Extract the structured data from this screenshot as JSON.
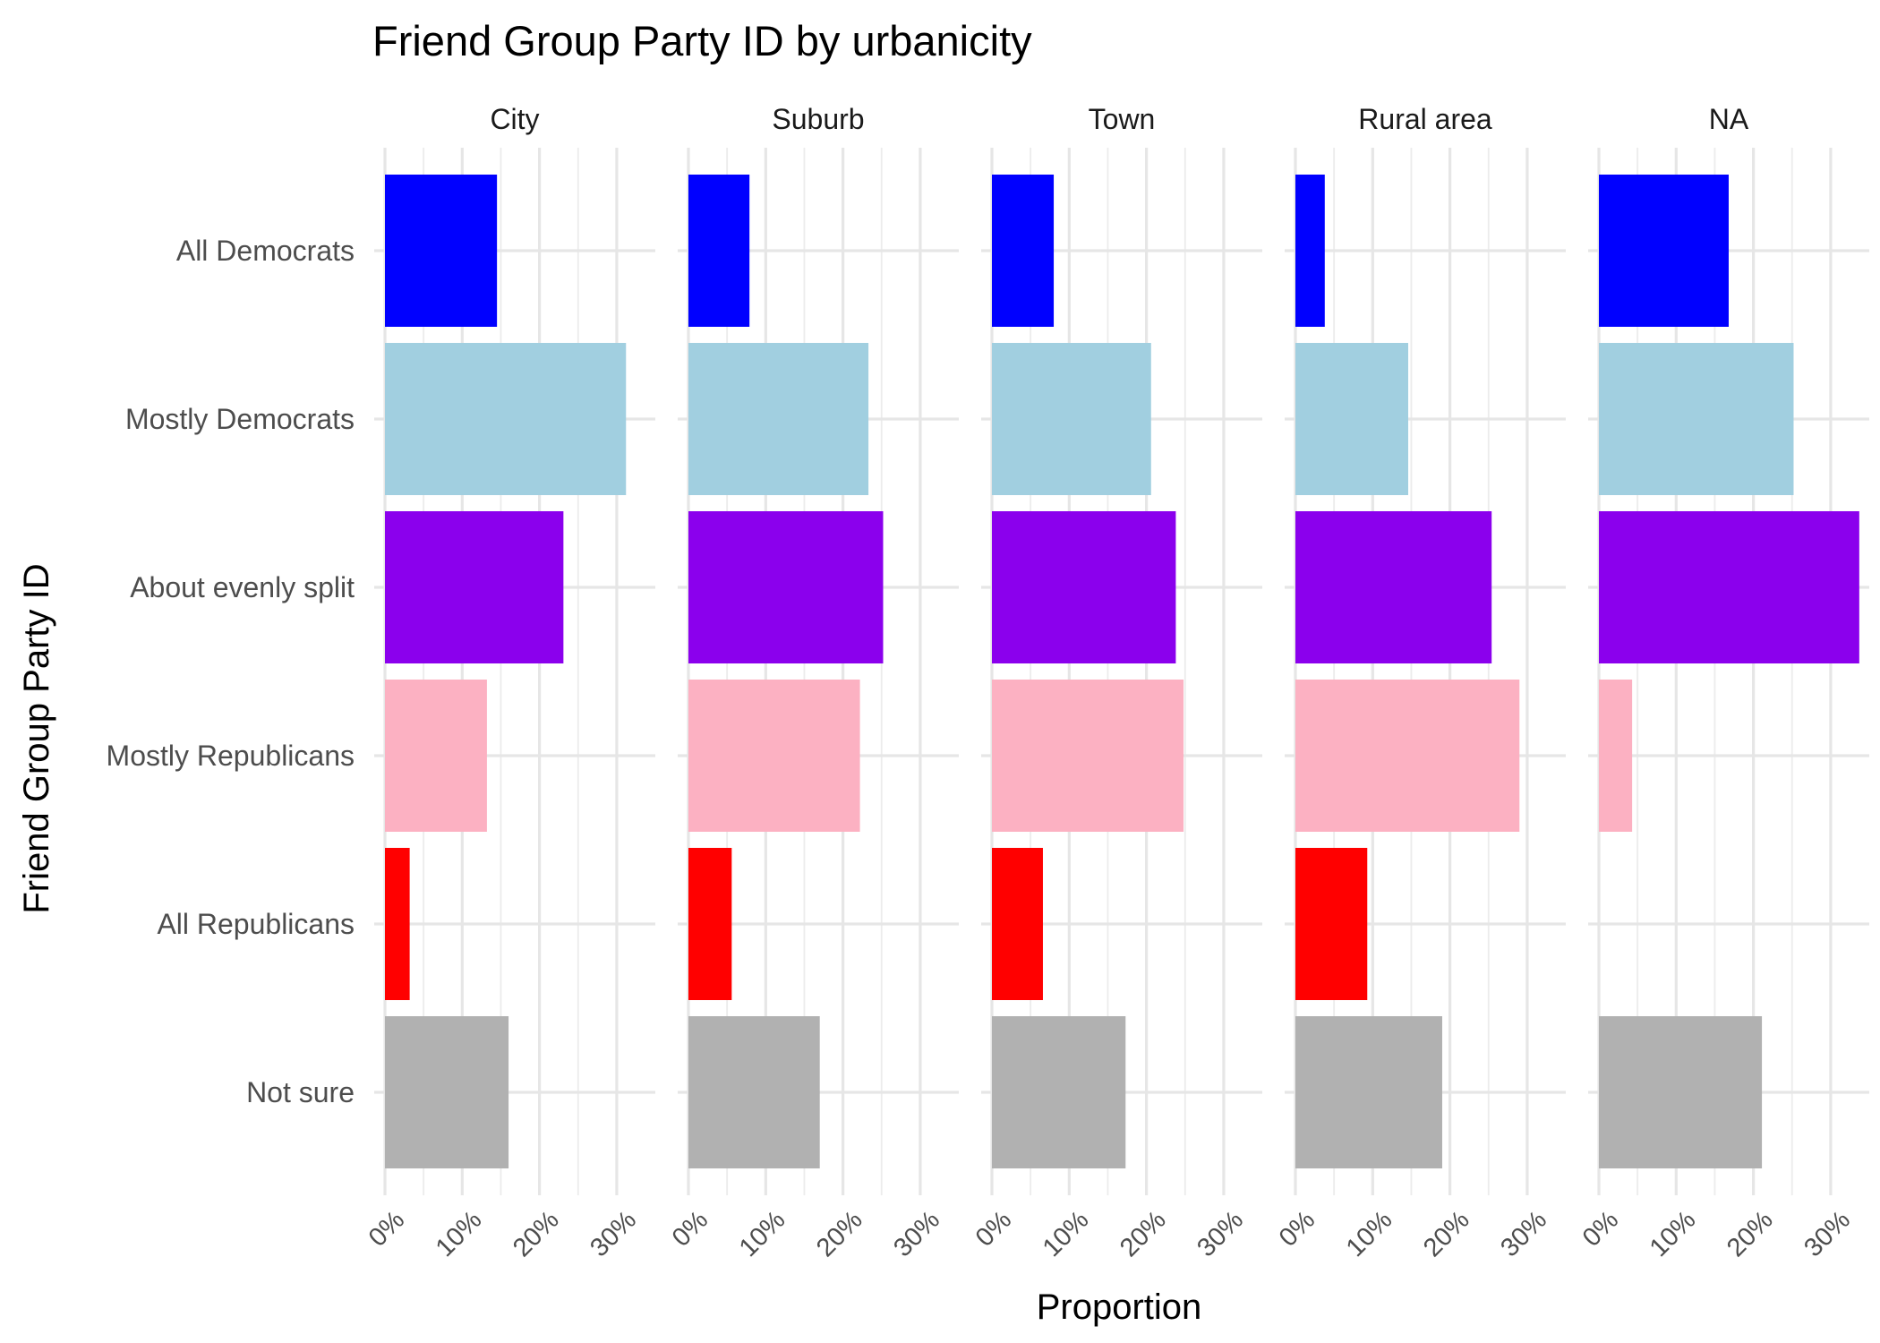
{
  "chart_data": {
    "type": "bar",
    "orientation": "horizontal",
    "title": "Friend Group Party ID by urbanicity",
    "xlabel": "Proportion",
    "ylabel": "Friend Group Party ID",
    "categories": [
      "All Democrats",
      "Mostly Democrats",
      "About evenly split",
      "Mostly Republicans",
      "All Republicans",
      "Not sure"
    ],
    "category_colors": [
      "#0000ff",
      "#a1cfe0",
      "#8b00ed",
      "#fcb1c2",
      "#ff0000",
      "#b1b1b1"
    ],
    "xticks": [
      "0%",
      "10%",
      "20%",
      "30%"
    ],
    "xlim": [
      0,
      35
    ],
    "grid": true,
    "legend": "none",
    "panels": [
      {
        "name": "City",
        "values": [
          14.5,
          31.2,
          23.1,
          13.2,
          3.2,
          16.0
        ]
      },
      {
        "name": "Suburb",
        "values": [
          7.9,
          23.3,
          25.2,
          22.2,
          5.6,
          17.0
        ]
      },
      {
        "name": "Town",
        "values": [
          8.0,
          20.6,
          23.8,
          24.8,
          6.6,
          17.3
        ]
      },
      {
        "name": "Rural area",
        "values": [
          3.8,
          14.6,
          25.4,
          29.0,
          9.3,
          19.0
        ]
      },
      {
        "name": "NA",
        "values": [
          16.8,
          25.2,
          33.7,
          4.3,
          0,
          21.1
        ]
      }
    ]
  }
}
